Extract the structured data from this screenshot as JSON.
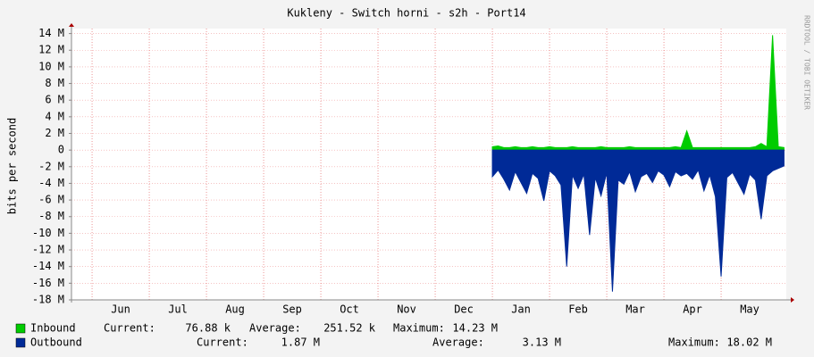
{
  "chart_data": {
    "type": "area",
    "title": "Kukleny - Switch horni - s2h - Port14",
    "y_label": "bits per second",
    "side_label": "RRDTOOL / TOBI OETIKER",
    "categories": [
      "Jun",
      "Jul",
      "Aug",
      "Sep",
      "Oct",
      "Nov",
      "Dec",
      "Jan",
      "Feb",
      "Mar",
      "Apr",
      "May"
    ],
    "x": [
      7.0,
      7.1,
      7.2,
      7.3,
      7.4,
      7.5,
      7.6,
      7.7,
      7.8,
      7.9,
      8.0,
      8.1,
      8.2,
      8.3,
      8.4,
      8.5,
      8.6,
      8.7,
      8.8,
      8.9,
      9.0,
      9.1,
      9.2,
      9.3,
      9.4,
      9.5,
      9.6,
      9.7,
      9.8,
      9.9,
      10.0,
      10.1,
      10.2,
      10.3,
      10.4,
      10.5,
      10.6,
      10.7,
      10.8,
      10.9,
      11.0,
      11.1,
      11.2,
      11.3,
      11.4,
      11.5,
      11.6,
      11.7,
      11.8,
      11.9,
      12.0,
      12.1
    ],
    "xlim": [
      -0.36,
      12.14
    ],
    "ylim": [
      -18,
      14.6
    ],
    "yticks": [
      {
        "value": 14,
        "label": "14 M"
      },
      {
        "value": 12,
        "label": "12 M"
      },
      {
        "value": 10,
        "label": "10 M"
      },
      {
        "value": 8,
        "label": "8 M"
      },
      {
        "value": 6,
        "label": "6 M"
      },
      {
        "value": 4,
        "label": "4 M"
      },
      {
        "value": 2,
        "label": "2 M"
      },
      0,
      {
        "value": -2,
        "label": "-2 M"
      },
      {
        "value": -4,
        "label": "-4 M"
      },
      {
        "value": -6,
        "label": "-6 M"
      },
      {
        "value": -8,
        "label": "-8 M"
      },
      {
        "value": -10,
        "label": "-10 M"
      },
      {
        "value": -12,
        "label": "-12 M"
      },
      {
        "value": -14,
        "label": "-14 M"
      },
      {
        "value": -16,
        "label": "-16 M"
      },
      {
        "value": -18,
        "label": "-18 M"
      }
    ],
    "grid": true,
    "series": [
      {
        "name": "Inbound",
        "color": "#00cc00",
        "values": [
          0.4,
          0.5,
          0.3,
          0.3,
          0.4,
          0.3,
          0.3,
          0.4,
          0.3,
          0.3,
          0.4,
          0.3,
          0.3,
          0.3,
          0.4,
          0.3,
          0.3,
          0.3,
          0.3,
          0.4,
          0.3,
          0.3,
          0.3,
          0.3,
          0.4,
          0.3,
          0.3,
          0.3,
          0.3,
          0.3,
          0.3,
          0.3,
          0.4,
          0.3,
          2.3,
          0.3,
          0.3,
          0.3,
          0.3,
          0.3,
          0.3,
          0.3,
          0.3,
          0.3,
          0.3,
          0.3,
          0.4,
          0.8,
          0.4,
          13.8,
          0.4,
          0.3
        ],
        "stats": {
          "current": "76.88 k",
          "average": "251.52 k",
          "maximum": "14.23 M"
        }
      },
      {
        "name": "Outbound",
        "color": "#002a97",
        "values": [
          -3.2,
          -2.4,
          -3.5,
          -4.8,
          -2.6,
          -3.9,
          -5.2,
          -2.8,
          -3.4,
          -6.1,
          -2.5,
          -3.1,
          -4.2,
          -14.0,
          -3.0,
          -4.6,
          -2.9,
          -10.2,
          -3.3,
          -5.5,
          -2.7,
          -17.0,
          -3.6,
          -4.1,
          -2.6,
          -5.0,
          -3.2,
          -2.8,
          -3.9,
          -2.5,
          -3.0,
          -4.4,
          -2.6,
          -3.1,
          -2.8,
          -3.5,
          -2.4,
          -4.9,
          -3.0,
          -5.6,
          -15.2,
          -3.3,
          -2.7,
          -4.0,
          -5.3,
          -2.9,
          -3.6,
          -8.3,
          -3.1,
          -2.5,
          -2.2,
          -1.9
        ],
        "stats": {
          "current": "1.87 M",
          "average": "3.13 M",
          "maximum": "18.02 M"
        }
      }
    ],
    "stat_labels": {
      "current": "Current:",
      "average": "Average:",
      "maximum": "Maximum:"
    }
  }
}
